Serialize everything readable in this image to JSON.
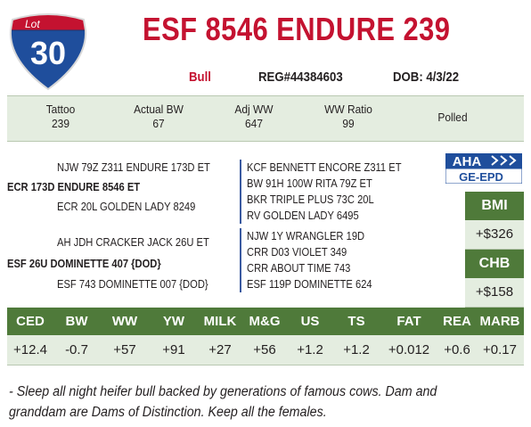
{
  "lot": {
    "word": "Lot",
    "number": "30"
  },
  "title": "ESF 8546 ENDURE 239",
  "breed": "Bull",
  "reg": "REG#44384603",
  "dob": "DOB: 4/3/22",
  "stats": [
    {
      "label": "Tattoo",
      "value": "239"
    },
    {
      "label": "Actual BW",
      "value": "67"
    },
    {
      "label": "Adj WW",
      "value": "647"
    },
    {
      "label": "WW Ratio",
      "value": "99"
    },
    {
      "label": "Polled",
      "value": ""
    }
  ],
  "pedigree": {
    "sire_side": [
      "NJW 79Z Z311 ENDURE 173D ET",
      "ECR 173D ENDURE 8546 ET",
      "ECR 20L GOLDEN LADY 8249"
    ],
    "dam_side": [
      "AH JDH CRACKER JACK 26U ET",
      "ESF 26U DOMINETTE 407 {DOD}",
      "ESF 743 DOMINETTE 007 {DOD}"
    ],
    "sire_right": [
      "KCF BENNETT ENCORE Z311 ET",
      "BW 91H 100W RITA 79Z ET",
      "BKR TRIPLE PLUS 73C 20L",
      "RV GOLDEN LADY 6495"
    ],
    "dam_right": [
      "NJW 1Y WRANGLER 19D",
      "CRR D03 VIOLET 349",
      "CRR ABOUT TIME 743",
      "ESF 119P DOMINETTE 624"
    ]
  },
  "logo": {
    "top": "AHA",
    "bottom": "GE-EPD"
  },
  "indexes": [
    {
      "label": "BMI",
      "value": "+$326"
    },
    {
      "label": "CHB",
      "value": "+$158"
    }
  ],
  "epds": [
    {
      "label": "CED",
      "value": "+12.4"
    },
    {
      "label": "BW",
      "value": "-0.7"
    },
    {
      "label": "WW",
      "value": "+57"
    },
    {
      "label": "YW",
      "value": "+91"
    },
    {
      "label": "MILK",
      "value": "+27"
    },
    {
      "label": "M&G",
      "value": "+56"
    },
    {
      "label": "US",
      "value": "+1.2"
    },
    {
      "label": "TS",
      "value": "+1.2"
    },
    {
      "label": "FAT",
      "value": "+0.012"
    },
    {
      "label": "REA",
      "value": "+0.6"
    },
    {
      "label": "MARB",
      "value": "+0.17"
    }
  ],
  "comment": "- Sleep all night heifer bull backed by generations of famous cows.  Dam and granddam are Dams of Distinction.  Keep all the females.",
  "colors": {
    "red": "#c41230",
    "green": "#4f7a3a",
    "light_green": "#e4ede0",
    "shield_blue": "#1f4e9c"
  }
}
